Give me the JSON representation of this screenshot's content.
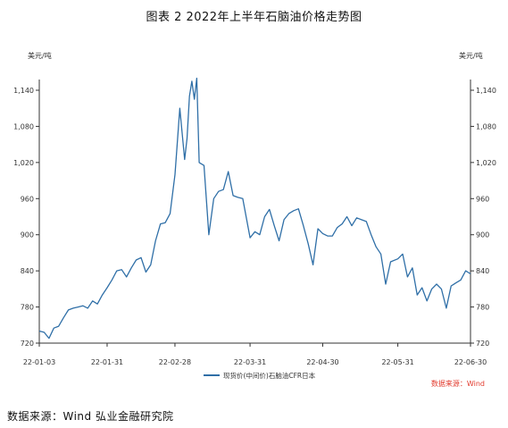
{
  "title": "图表 2 2022年上半年石脑油价格走势图",
  "source_inline": "数据来源：Wind",
  "source_footer": "数据来源：Wind 弘业金融研究院",
  "colors": {
    "series": "#2f6fa7",
    "axis": "#333333",
    "source_red": "#e23b2e"
  },
  "chart_data": {
    "type": "line",
    "title": "图表 2 2022年上半年石脑油价格走势图",
    "y_unit_left": "美元/吨",
    "y_unit_right": "美元/吨",
    "ylim": [
      720,
      1140
    ],
    "y_ticks": [
      720,
      780,
      840,
      900,
      960,
      1020,
      1080,
      1140
    ],
    "y_tick_labels": [
      "720",
      "780",
      "840",
      "900",
      "960",
      "1,020",
      "1,080",
      "1,140"
    ],
    "x_tick_labels": [
      "22-01-03",
      "22-01-31",
      "22-02-28",
      "22-03-31",
      "22-04-30",
      "22-05-31",
      "22-06-30"
    ],
    "grid": false,
    "legend_position": "bottom",
    "series": [
      {
        "name": "现货价(中间价)石脑油CFR日本",
        "x": [
          "2022-01-03",
          "2022-01-05",
          "2022-01-07",
          "2022-01-09",
          "2022-01-11",
          "2022-01-13",
          "2022-01-15",
          "2022-01-17",
          "2022-01-19",
          "2022-01-21",
          "2022-01-23",
          "2022-01-25",
          "2022-01-27",
          "2022-01-29",
          "2022-01-31",
          "2022-02-02",
          "2022-02-04",
          "2022-02-06",
          "2022-02-08",
          "2022-02-10",
          "2022-02-12",
          "2022-02-14",
          "2022-02-16",
          "2022-02-18",
          "2022-02-20",
          "2022-02-22",
          "2022-02-24",
          "2022-02-26",
          "2022-02-28",
          "2022-03-02",
          "2022-03-04",
          "2022-03-05",
          "2022-03-06",
          "2022-03-07",
          "2022-03-08",
          "2022-03-09",
          "2022-03-10",
          "2022-03-12",
          "2022-03-14",
          "2022-03-16",
          "2022-03-18",
          "2022-03-20",
          "2022-03-22",
          "2022-03-24",
          "2022-03-26",
          "2022-03-28",
          "2022-03-31",
          "2022-04-02",
          "2022-04-04",
          "2022-04-06",
          "2022-04-08",
          "2022-04-10",
          "2022-04-12",
          "2022-04-14",
          "2022-04-16",
          "2022-04-18",
          "2022-04-20",
          "2022-04-22",
          "2022-04-24",
          "2022-04-26",
          "2022-04-28",
          "2022-04-30",
          "2022-05-02",
          "2022-05-04",
          "2022-05-06",
          "2022-05-08",
          "2022-05-10",
          "2022-05-12",
          "2022-05-14",
          "2022-05-16",
          "2022-05-18",
          "2022-05-20",
          "2022-05-22",
          "2022-05-24",
          "2022-05-26",
          "2022-05-28",
          "2022-05-31",
          "2022-06-02",
          "2022-06-04",
          "2022-06-06",
          "2022-06-08",
          "2022-06-10",
          "2022-06-12",
          "2022-06-14",
          "2022-06-16",
          "2022-06-18",
          "2022-06-20",
          "2022-06-22",
          "2022-06-24",
          "2022-06-26",
          "2022-06-28",
          "2022-06-30"
        ],
        "values": [
          740,
          738,
          728,
          745,
          748,
          762,
          775,
          778,
          780,
          782,
          778,
          790,
          785,
          800,
          812,
          825,
          840,
          842,
          830,
          845,
          858,
          862,
          838,
          850,
          890,
          918,
          920,
          935,
          1000,
          1110,
          1025,
          1060,
          1130,
          1155,
          1125,
          1160,
          1020,
          1015,
          900,
          960,
          972,
          975,
          1005,
          965,
          962,
          960,
          895,
          905,
          900,
          930,
          942,
          915,
          890,
          925,
          935,
          940,
          943,
          915,
          885,
          850,
          910,
          902,
          898,
          898,
          912,
          918,
          930,
          915,
          928,
          925,
          922,
          900,
          880,
          868,
          818,
          855,
          860,
          868,
          830,
          845,
          800,
          812,
          790,
          810,
          818,
          810,
          778,
          815,
          820,
          825,
          840,
          835
        ]
      }
    ]
  }
}
